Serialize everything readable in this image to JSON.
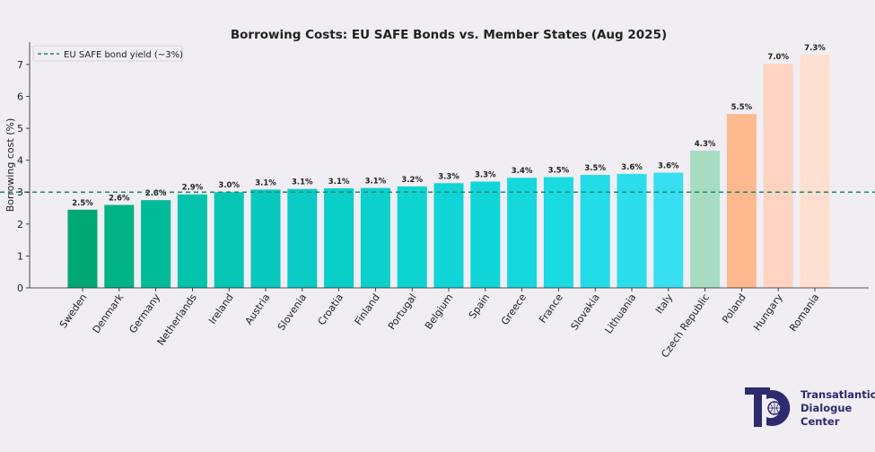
{
  "chart_data": {
    "type": "bar",
    "title": "Borrowing Costs: EU SAFE Bonds vs. Member States (Aug 2025)",
    "xlabel": "",
    "ylabel": "Borrowing cost (%)",
    "ylim": [
      0,
      7.7
    ],
    "yticks": [
      "0",
      "1",
      "2",
      "3",
      "4",
      "5",
      "6",
      "7"
    ],
    "grid": false,
    "legend_position": "top-left",
    "categories": [
      "Sweden",
      "Denmark",
      "Germany",
      "Netherlands",
      "Ireland",
      "Austria",
      "Slovenia",
      "Croatia",
      "Finland",
      "Portugal",
      "Belgium",
      "Spain",
      "Greece",
      "France",
      "Slovakia",
      "Lithuania",
      "Italy",
      "Czech Republic",
      "Poland",
      "Hungary",
      "Romania"
    ],
    "values": [
      2.45,
      2.6,
      2.75,
      2.93,
      3.0,
      3.08,
      3.1,
      3.12,
      3.13,
      3.18,
      3.28,
      3.33,
      3.45,
      3.47,
      3.54,
      3.57,
      3.61,
      4.3,
      5.45,
      7.02,
      7.3
    ],
    "value_labels": [
      "2.5%",
      "2.6%",
      "2.8%",
      "2.9%",
      "3.0%",
      "3.1%",
      "3.1%",
      "3.1%",
      "3.1%",
      "3.2%",
      "3.3%",
      "3.3%",
      "3.4%",
      "3.5%",
      "3.5%",
      "3.6%",
      "3.6%",
      "4.3%",
      "5.5%",
      "7.0%",
      "7.3%"
    ],
    "bar_colors": [
      "#00a873",
      "#00b386",
      "#00bb98",
      "#02c3ac",
      "#06c6b6",
      "#08c9bf",
      "#0acbc5",
      "#0acec8",
      "#0cd0cc",
      "#0dd3d1",
      "#10d4d6",
      "#10d6da",
      "#15d8dd",
      "#1adae2",
      "#22dce7",
      "#2cdeec",
      "#38dff0",
      "#a8dcc2",
      "#ffb98f",
      "#ffd3c2",
      "#ffdfcf"
    ],
    "reference_line": {
      "value": 3.0,
      "label": "EU SAFE bond yield (~3%)",
      "color": "#1a8a6a",
      "style": "dashed"
    }
  },
  "logo": {
    "lines": [
      "Transatlantic",
      "Dialogue",
      "Center"
    ],
    "color": "#2e2a6e"
  }
}
